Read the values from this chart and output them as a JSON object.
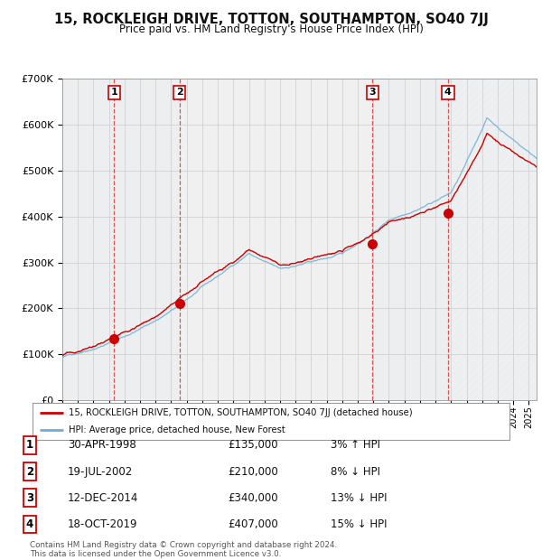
{
  "title": "15, ROCKLEIGH DRIVE, TOTTON, SOUTHAMPTON, SO40 7JJ",
  "subtitle": "Price paid vs. HM Land Registry's House Price Index (HPI)",
  "legend_line1": "15, ROCKLEIGH DRIVE, TOTTON, SOUTHAMPTON, SO40 7JJ (detached house)",
  "legend_line2": "HPI: Average price, detached house, New Forest",
  "footnote": "Contains HM Land Registry data © Crown copyright and database right 2024.\nThis data is licensed under the Open Government Licence v3.0.",
  "sales": [
    {
      "num": 1,
      "date_label": "30-APR-1998",
      "price_label": "£135,000",
      "pct_label": "3% ↑ HPI",
      "year": 1998.33
    },
    {
      "num": 2,
      "date_label": "19-JUL-2002",
      "price_label": "£210,000",
      "pct_label": "8% ↓ HPI",
      "year": 2002.54
    },
    {
      "num": 3,
      "date_label": "12-DEC-2014",
      "price_label": "£340,000",
      "pct_label": "13% ↓ HPI",
      "year": 2014.95
    },
    {
      "num": 4,
      "date_label": "18-OCT-2019",
      "price_label": "£407,000",
      "pct_label": "15% ↓ HPI",
      "year": 2019.8
    }
  ],
  "sale_prices": [
    135000,
    210000,
    340000,
    407000
  ],
  "ylim": [
    0,
    700000
  ],
  "xlim_start": 1995.0,
  "xlim_end": 2025.5,
  "hpi_color": "#6baed6",
  "price_color": "#cc0000",
  "bg_color": "#f0f0f0",
  "plot_bg_color": "#f0f0f0",
  "grid_color": "#cccccc",
  "shade_color": "#dce9f5",
  "title_fontsize": 11,
  "subtitle_fontsize": 9
}
